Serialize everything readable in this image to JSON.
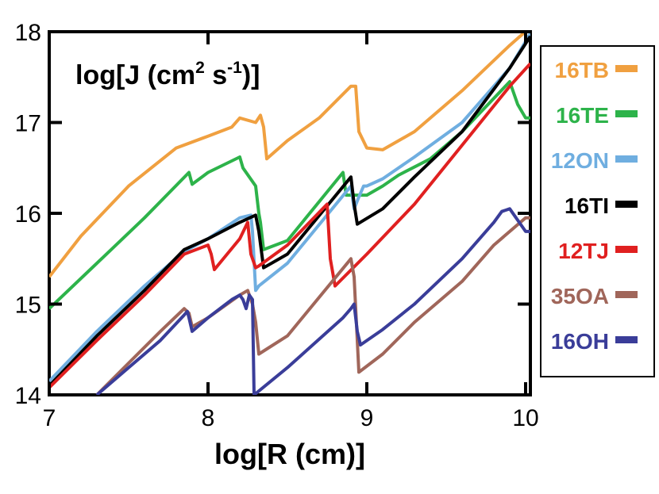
{
  "chart_data": {
    "type": "line",
    "title": "",
    "inset_label": {
      "main": "log[J (cm",
      "sup1": "2",
      "mid": " s",
      "sup2": "-1",
      "end": ")]"
    },
    "xlabel": "log[R (cm)]",
    "ylabel": "",
    "xlim": [
      7,
      10.03
    ],
    "ylim": [
      14,
      18
    ],
    "xticks": [
      7,
      8,
      9,
      10
    ],
    "yticks": [
      14,
      15,
      16,
      17,
      18
    ],
    "xtick_labels": [
      "7",
      "8",
      "9",
      "10"
    ],
    "ytick_labels": [
      "14",
      "15",
      "16",
      "17",
      "18"
    ],
    "grid": false,
    "legend_position": "right",
    "series": [
      {
        "name": "16TB",
        "color": "#F0A040",
        "x": [
          7.0,
          7.2,
          7.5,
          7.8,
          8.0,
          8.15,
          8.2,
          8.3,
          8.33,
          8.35,
          8.37,
          8.5,
          8.7,
          8.9,
          8.93,
          8.95,
          9.0,
          9.1,
          9.3,
          9.6,
          9.9,
          10.03
        ],
        "y": [
          15.3,
          15.75,
          16.3,
          16.72,
          16.85,
          16.95,
          17.05,
          17.0,
          17.08,
          16.95,
          16.6,
          16.8,
          17.05,
          17.4,
          17.4,
          16.9,
          16.72,
          16.7,
          16.9,
          17.35,
          17.85,
          18.05
        ]
      },
      {
        "name": "16TE",
        "color": "#2DB34A",
        "x": [
          7.0,
          7.3,
          7.6,
          7.88,
          7.9,
          8.0,
          8.2,
          8.22,
          8.3,
          8.32,
          8.33,
          8.35,
          8.5,
          8.85,
          8.87,
          9.0,
          9.1,
          9.2,
          9.4,
          9.6,
          9.9,
          9.95,
          10.0,
          10.03
        ],
        "y": [
          14.95,
          15.45,
          15.95,
          16.45,
          16.32,
          16.45,
          16.62,
          16.5,
          16.3,
          16.0,
          15.9,
          15.6,
          15.7,
          16.45,
          16.2,
          16.2,
          16.3,
          16.42,
          16.6,
          16.9,
          17.45,
          17.2,
          17.05,
          17.05
        ]
      },
      {
        "name": "12ON",
        "color": "#6FAEE0",
        "x": [
          7.0,
          7.3,
          7.6,
          7.85,
          8.0,
          8.2,
          8.27,
          8.28,
          8.3,
          8.32,
          8.5,
          8.9,
          8.92,
          8.95,
          8.98,
          9.0,
          9.1,
          9.3,
          9.6,
          9.9,
          10.03
        ],
        "y": [
          14.15,
          14.7,
          15.2,
          15.58,
          15.72,
          15.95,
          15.98,
          15.8,
          15.15,
          15.2,
          15.45,
          16.3,
          16.05,
          16.18,
          16.3,
          16.3,
          16.38,
          16.62,
          17.0,
          17.6,
          17.98
        ]
      },
      {
        "name": "16TI",
        "color": "#000000",
        "x": [
          7.0,
          7.3,
          7.6,
          7.85,
          8.0,
          8.2,
          8.3,
          8.32,
          8.35,
          8.5,
          8.9,
          8.92,
          8.94,
          9.1,
          9.3,
          9.6,
          9.9,
          10.03
        ],
        "y": [
          14.1,
          14.65,
          15.15,
          15.6,
          15.72,
          15.9,
          15.98,
          15.8,
          15.4,
          15.55,
          16.4,
          16.1,
          15.88,
          16.05,
          16.4,
          16.9,
          17.6,
          17.95
        ]
      },
      {
        "name": "12TJ",
        "color": "#E02020",
        "x": [
          7.0,
          7.3,
          7.6,
          7.85,
          8.0,
          8.02,
          8.04,
          8.2,
          8.25,
          8.27,
          8.3,
          8.32,
          8.5,
          8.75,
          8.77,
          8.8,
          9.0,
          9.3,
          9.6,
          9.9,
          10.03
        ],
        "y": [
          14.08,
          14.6,
          15.1,
          15.55,
          15.65,
          15.55,
          15.38,
          15.72,
          15.9,
          15.55,
          15.4,
          15.42,
          15.65,
          16.1,
          15.5,
          15.2,
          15.55,
          16.1,
          16.75,
          17.4,
          17.65
        ]
      },
      {
        "name": "35OA",
        "color": "#A0665A",
        "x": [
          7.3,
          7.5,
          7.7,
          7.85,
          7.88,
          7.9,
          8.0,
          8.2,
          8.25,
          8.28,
          8.3,
          8.32,
          8.5,
          8.9,
          8.92,
          8.95,
          9.1,
          9.3,
          9.6,
          9.8,
          10.0,
          10.03
        ],
        "y": [
          14.0,
          14.35,
          14.7,
          14.95,
          14.9,
          14.75,
          14.85,
          15.1,
          15.15,
          15.0,
          14.8,
          14.45,
          14.65,
          15.5,
          15.3,
          14.25,
          14.45,
          14.8,
          15.25,
          15.65,
          15.95,
          15.95
        ]
      },
      {
        "name": "16OH",
        "color": "#3A3D99",
        "x": [
          7.3,
          7.5,
          7.7,
          7.85,
          7.87,
          7.88,
          7.9,
          8.0,
          8.15,
          8.2,
          8.22,
          8.24,
          8.26,
          8.28,
          8.29,
          8.5,
          8.85,
          8.9,
          8.92,
          8.94,
          8.96,
          9.1,
          9.3,
          9.6,
          9.8,
          9.85,
          9.9,
          10.0,
          10.03
        ],
        "y": [
          14.0,
          14.3,
          14.6,
          14.88,
          14.92,
          14.85,
          14.7,
          14.85,
          15.05,
          15.1,
          15.05,
          14.95,
          15.1,
          15.05,
          14.0,
          14.3,
          14.85,
          14.95,
          15.0,
          14.7,
          14.55,
          14.72,
          15.0,
          15.5,
          15.9,
          16.02,
          16.05,
          15.8,
          15.8
        ]
      }
    ]
  }
}
